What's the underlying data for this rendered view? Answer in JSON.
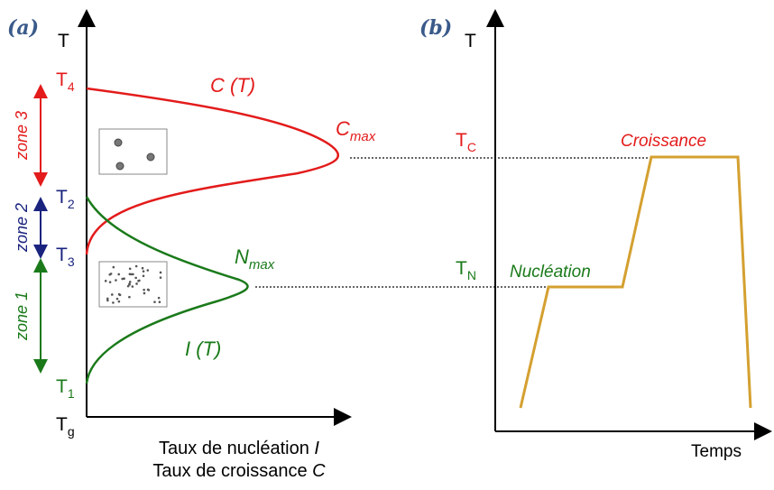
{
  "panel_a": {
    "tag": "(a)",
    "y_axis": "T",
    "levels": [
      {
        "main": "T",
        "sub": "4"
      },
      {
        "main": "T",
        "sub": "2"
      },
      {
        "main": "T",
        "sub": "3"
      },
      {
        "main": "T",
        "sub": "1"
      },
      {
        "main": "T",
        "sub": "g"
      }
    ],
    "zones": [
      "zone 3",
      "zone 2",
      "zone 1"
    ],
    "curve_c": "C (T)",
    "curve_i": "I (T)",
    "c_max": {
      "main": "C",
      "sub": "max"
    },
    "n_max": {
      "main": "N",
      "sub": "max"
    },
    "x_axis": [
      {
        "text": "Taux de nucléation ",
        "symbol": "I"
      },
      {
        "text": "Taux de croissance ",
        "symbol": "C"
      }
    ]
  },
  "panel_b": {
    "tag": "(b)",
    "y_axis": "T",
    "t_c": {
      "main": "T",
      "sub": "C"
    },
    "t_n": {
      "main": "T",
      "sub": "N"
    },
    "stage_growth": "Croissance",
    "stage_nucleation": "Nucléation",
    "x_axis": "Temps"
  }
}
